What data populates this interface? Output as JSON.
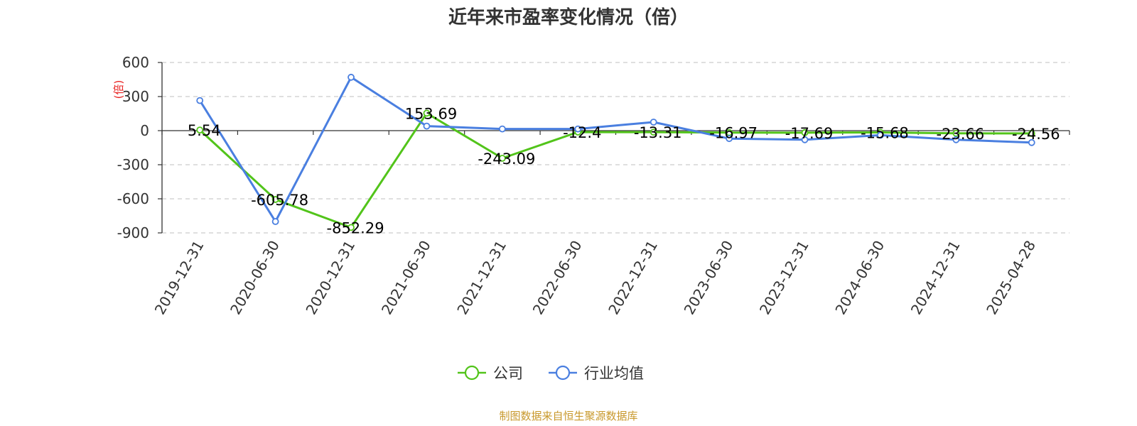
{
  "chart_data": {
    "type": "line",
    "title": "近年来市盈率变化情况（倍）",
    "ylabel": "(倍)",
    "xlabel": "",
    "categories": [
      "2019-12-31",
      "2020-06-30",
      "2020-12-31",
      "2021-06-30",
      "2021-12-31",
      "2022-06-30",
      "2022-12-31",
      "2023-06-30",
      "2023-12-31",
      "2024-06-30",
      "2024-12-31",
      "2025-04-28"
    ],
    "ylim": [
      -900,
      600
    ],
    "yticks": [
      600,
      300,
      0,
      -300,
      -600,
      -900
    ],
    "grid": true,
    "legend_position": "bottom-center",
    "series": [
      {
        "name": "公司",
        "color": "#52c41a",
        "values": [
          5.54,
          -605.78,
          -852.29,
          153.69,
          -243.09,
          -12.4,
          -13.31,
          -16.97,
          -17.69,
          -15.68,
          -23.66,
          -24.56
        ],
        "labels": [
          "5.54",
          "-605.78",
          "-852.29",
          "153.69",
          "-243.09",
          "-12.4",
          "-13.31",
          "-16.97",
          "-17.69",
          "-15.68",
          "-23.66",
          "-24.56"
        ]
      },
      {
        "name": "行业均值",
        "color": "#4a7fe0",
        "values": [
          265,
          -800,
          470,
          40,
          15,
          15,
          75,
          -70,
          -80,
          -40,
          -80,
          -105
        ]
      }
    ],
    "source": "制图数据来自恒生聚源数据库"
  }
}
